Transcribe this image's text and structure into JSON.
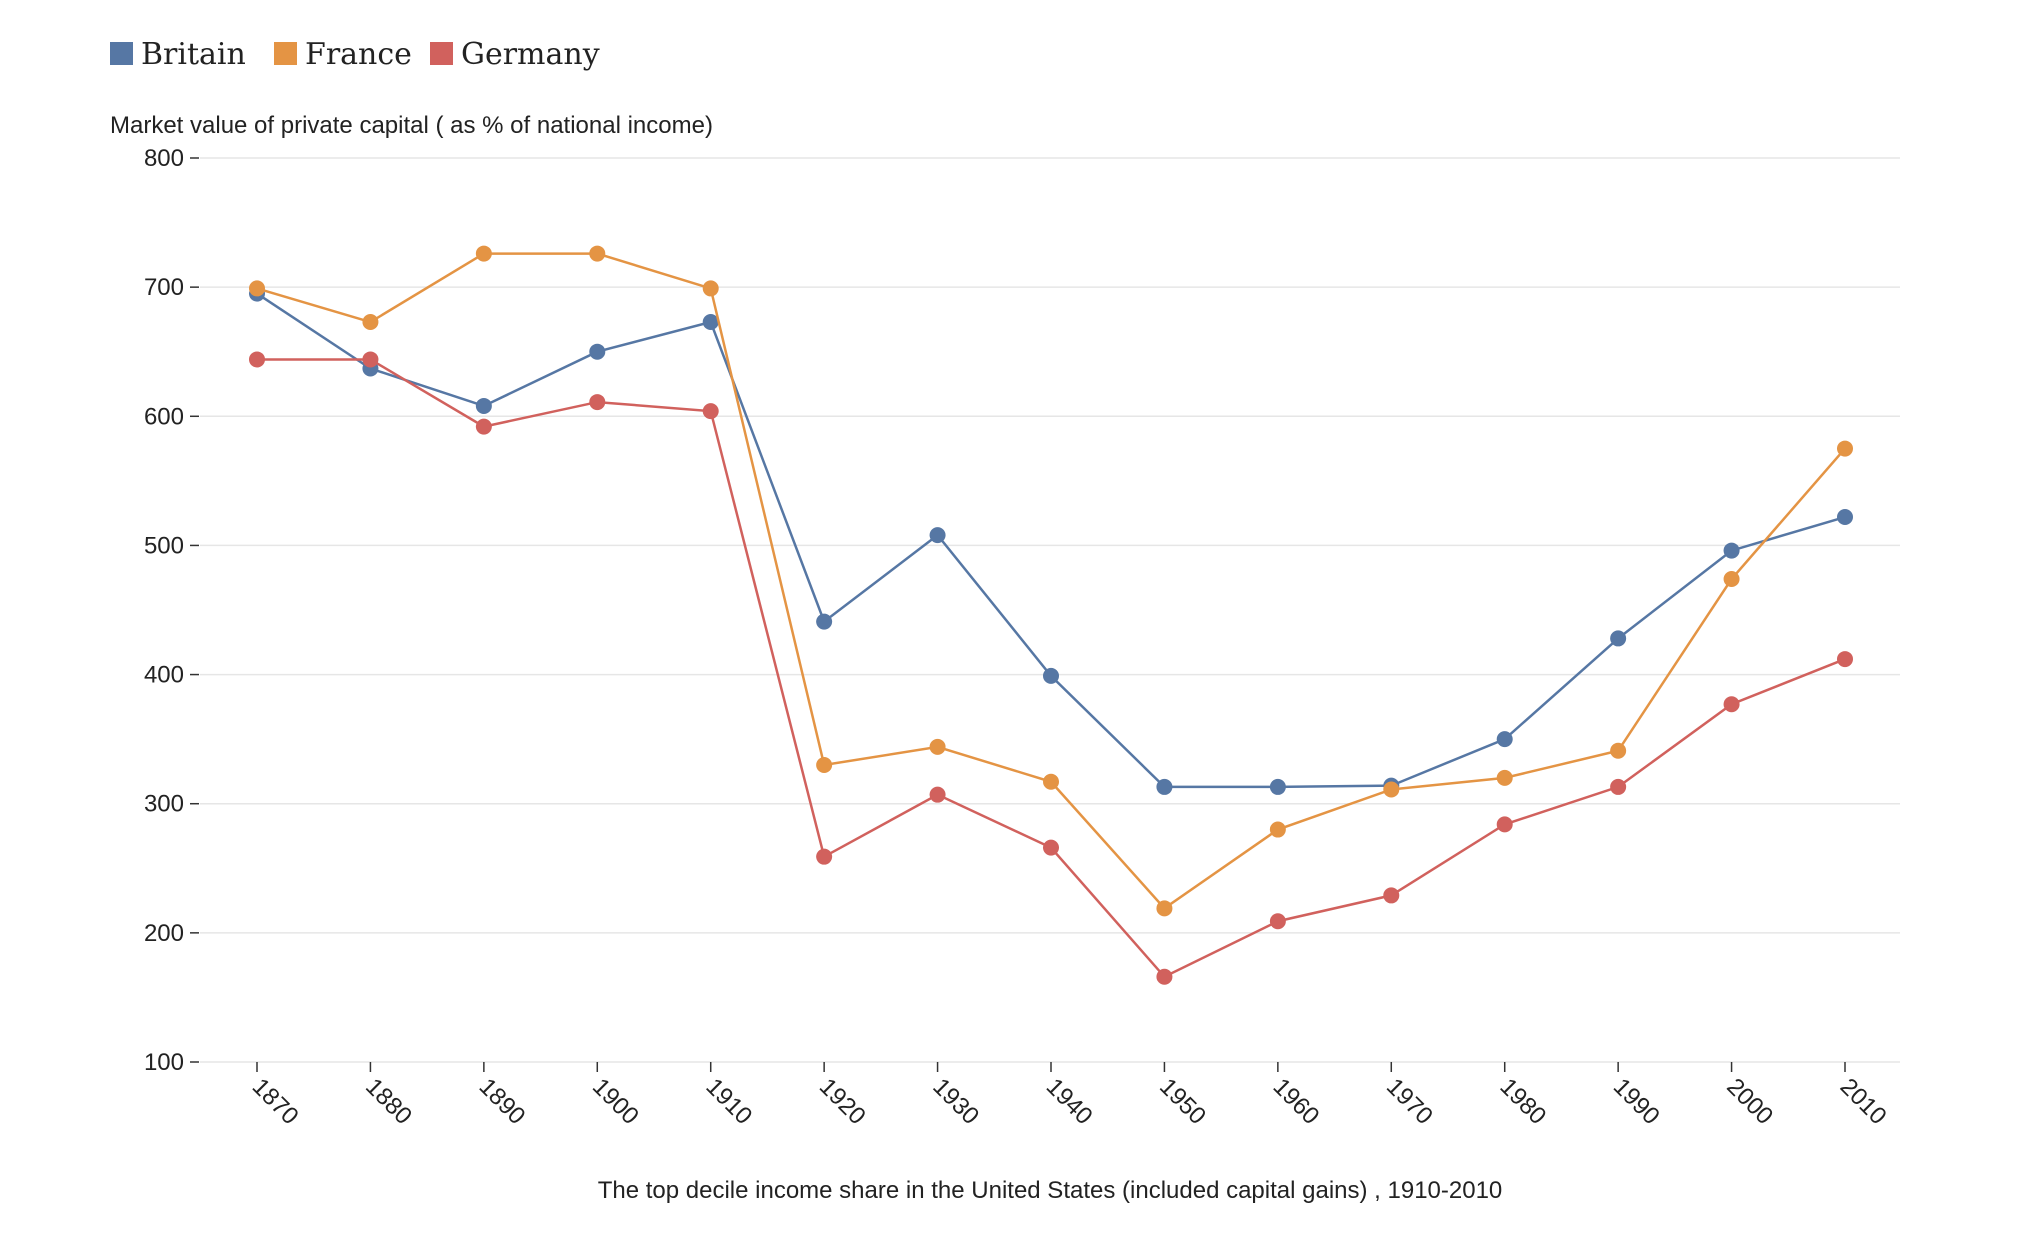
{
  "chart_data": {
    "type": "line",
    "title": "",
    "ylabel": "Market value of private capital ( as % of national income)",
    "xlabel": "The top decile income share in the United States  (included capital gains) , 1910-2010",
    "x": [
      "1870",
      "1880",
      "1890",
      "1900",
      "1910",
      "1920",
      "1930",
      "1940",
      "1950",
      "1960",
      "1970",
      "1980",
      "1990",
      "2000",
      "2010"
    ],
    "ylim": [
      100,
      800
    ],
    "yticks": [
      100,
      200,
      300,
      400,
      500,
      600,
      700,
      800
    ],
    "grid": true,
    "legend_position": "top-left",
    "series": [
      {
        "name": "Britain",
        "color": "#5677a4",
        "values": [
          695,
          637,
          608,
          650,
          673,
          441,
          508,
          399,
          313,
          313,
          314,
          350,
          428,
          496,
          522
        ]
      },
      {
        "name": "France",
        "color": "#e49444",
        "values": [
          699,
          673,
          726,
          726,
          699,
          330,
          344,
          317,
          219,
          280,
          311,
          320,
          341,
          474,
          575
        ]
      },
      {
        "name": "Germany",
        "color": "#d1615d",
        "values": [
          644,
          644,
          592,
          611,
          604,
          259,
          307,
          266,
          166,
          209,
          229,
          284,
          313,
          377,
          412
        ]
      }
    ]
  }
}
